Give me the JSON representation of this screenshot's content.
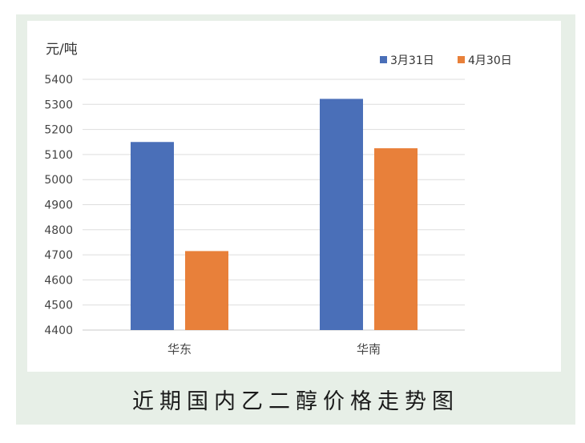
{
  "caption": "近期国内乙二醇价格走势图",
  "chart_data": {
    "type": "bar",
    "ylabel": "元/吨",
    "categories": [
      "华东",
      "华南"
    ],
    "series": [
      {
        "name": "3月31日",
        "values": [
          5150,
          5322
        ],
        "color": "#4a6fb8"
      },
      {
        "name": "4月30日",
        "values": [
          4715,
          5125
        ],
        "color": "#e8803a"
      }
    ],
    "ylim": [
      4400,
      5400
    ],
    "yticks": [
      4400,
      4500,
      4600,
      4700,
      4800,
      4900,
      5000,
      5100,
      5200,
      5300,
      5400
    ],
    "grid": true,
    "legend": "top-right"
  }
}
